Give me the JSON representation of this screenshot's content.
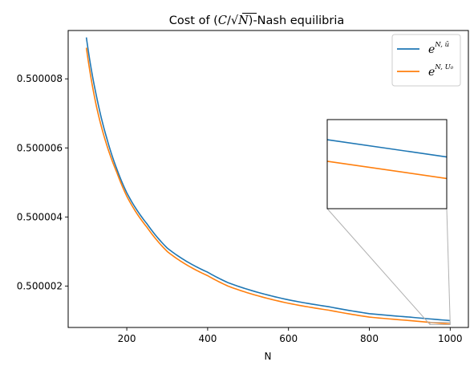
{
  "chart_data": {
    "type": "line",
    "title": "Cost of (C/√N)-Nash equilibria",
    "title_parts": {
      "prefix": "Cost of (",
      "c": "C",
      "slash": "/",
      "sqrt": "√",
      "n": "N",
      "suffix": ")-Nash equilibria"
    },
    "xlabel": "N",
    "ylabel": "",
    "xlim": [
      55,
      1045
    ],
    "ylim": [
      0.5000008,
      0.5000094
    ],
    "xticks": [
      200,
      400,
      600,
      800,
      1000
    ],
    "xtick_labels": [
      "200",
      "400",
      "600",
      "800",
      "1000"
    ],
    "yticks": [
      0.500002,
      0.500004,
      0.500006,
      0.500008
    ],
    "ytick_labels": [
      "0.500002",
      "0.500004",
      "0.500006",
      "0.500008"
    ],
    "grid": false,
    "legend_position": "top-right",
    "series": [
      {
        "name": "e^{N,ū}",
        "legend_main": "e",
        "legend_sup": "N, ū",
        "color": "#1f77b4",
        "x": [
          100,
          125,
          150,
          175,
          200,
          250,
          300,
          350,
          400,
          450,
          500,
          600,
          700,
          800,
          900,
          1000
        ],
        "y": [
          0.5000092,
          0.5000075,
          0.5000063,
          0.5000054,
          0.5000047,
          0.5000038,
          0.5000031,
          0.5000027,
          0.5000024,
          0.5000021,
          0.5000019,
          0.5000016,
          0.5000014,
          0.5000012,
          0.5000011,
          0.500001
        ]
      },
      {
        "name": "e^{N,U₀}",
        "legend_main": "e",
        "legend_sup": "N, U₀",
        "color": "#ff7f0e",
        "x": [
          100,
          125,
          150,
          175,
          200,
          250,
          300,
          350,
          400,
          450,
          500,
          600,
          700,
          800,
          900,
          1000
        ],
        "y": [
          0.5000089,
          0.5000072,
          0.5000061,
          0.5000053,
          0.5000046,
          0.5000037,
          0.500003,
          0.5000026,
          0.5000023,
          0.500002,
          0.5000018,
          0.5000015,
          0.5000013,
          0.5000011,
          0.500001,
          0.5000009
        ]
      }
    ],
    "inset": {
      "xlim": [
        950,
        1000
      ],
      "ylim": [
        0.500000884,
        0.500000946
      ],
      "series": [
        {
          "name": "e^{N,ū}",
          "color": "#1f77b4",
          "x": [
            950,
            1000
          ],
          "y": [
            0.500000932,
            0.50000092
          ]
        },
        {
          "name": "e^{N,U₀}",
          "color": "#ff7f0e",
          "x": [
            950,
            1000
          ],
          "y": [
            0.500000917,
            0.500000905
          ]
        }
      ],
      "indicator_color": "#b0b0b0"
    }
  }
}
